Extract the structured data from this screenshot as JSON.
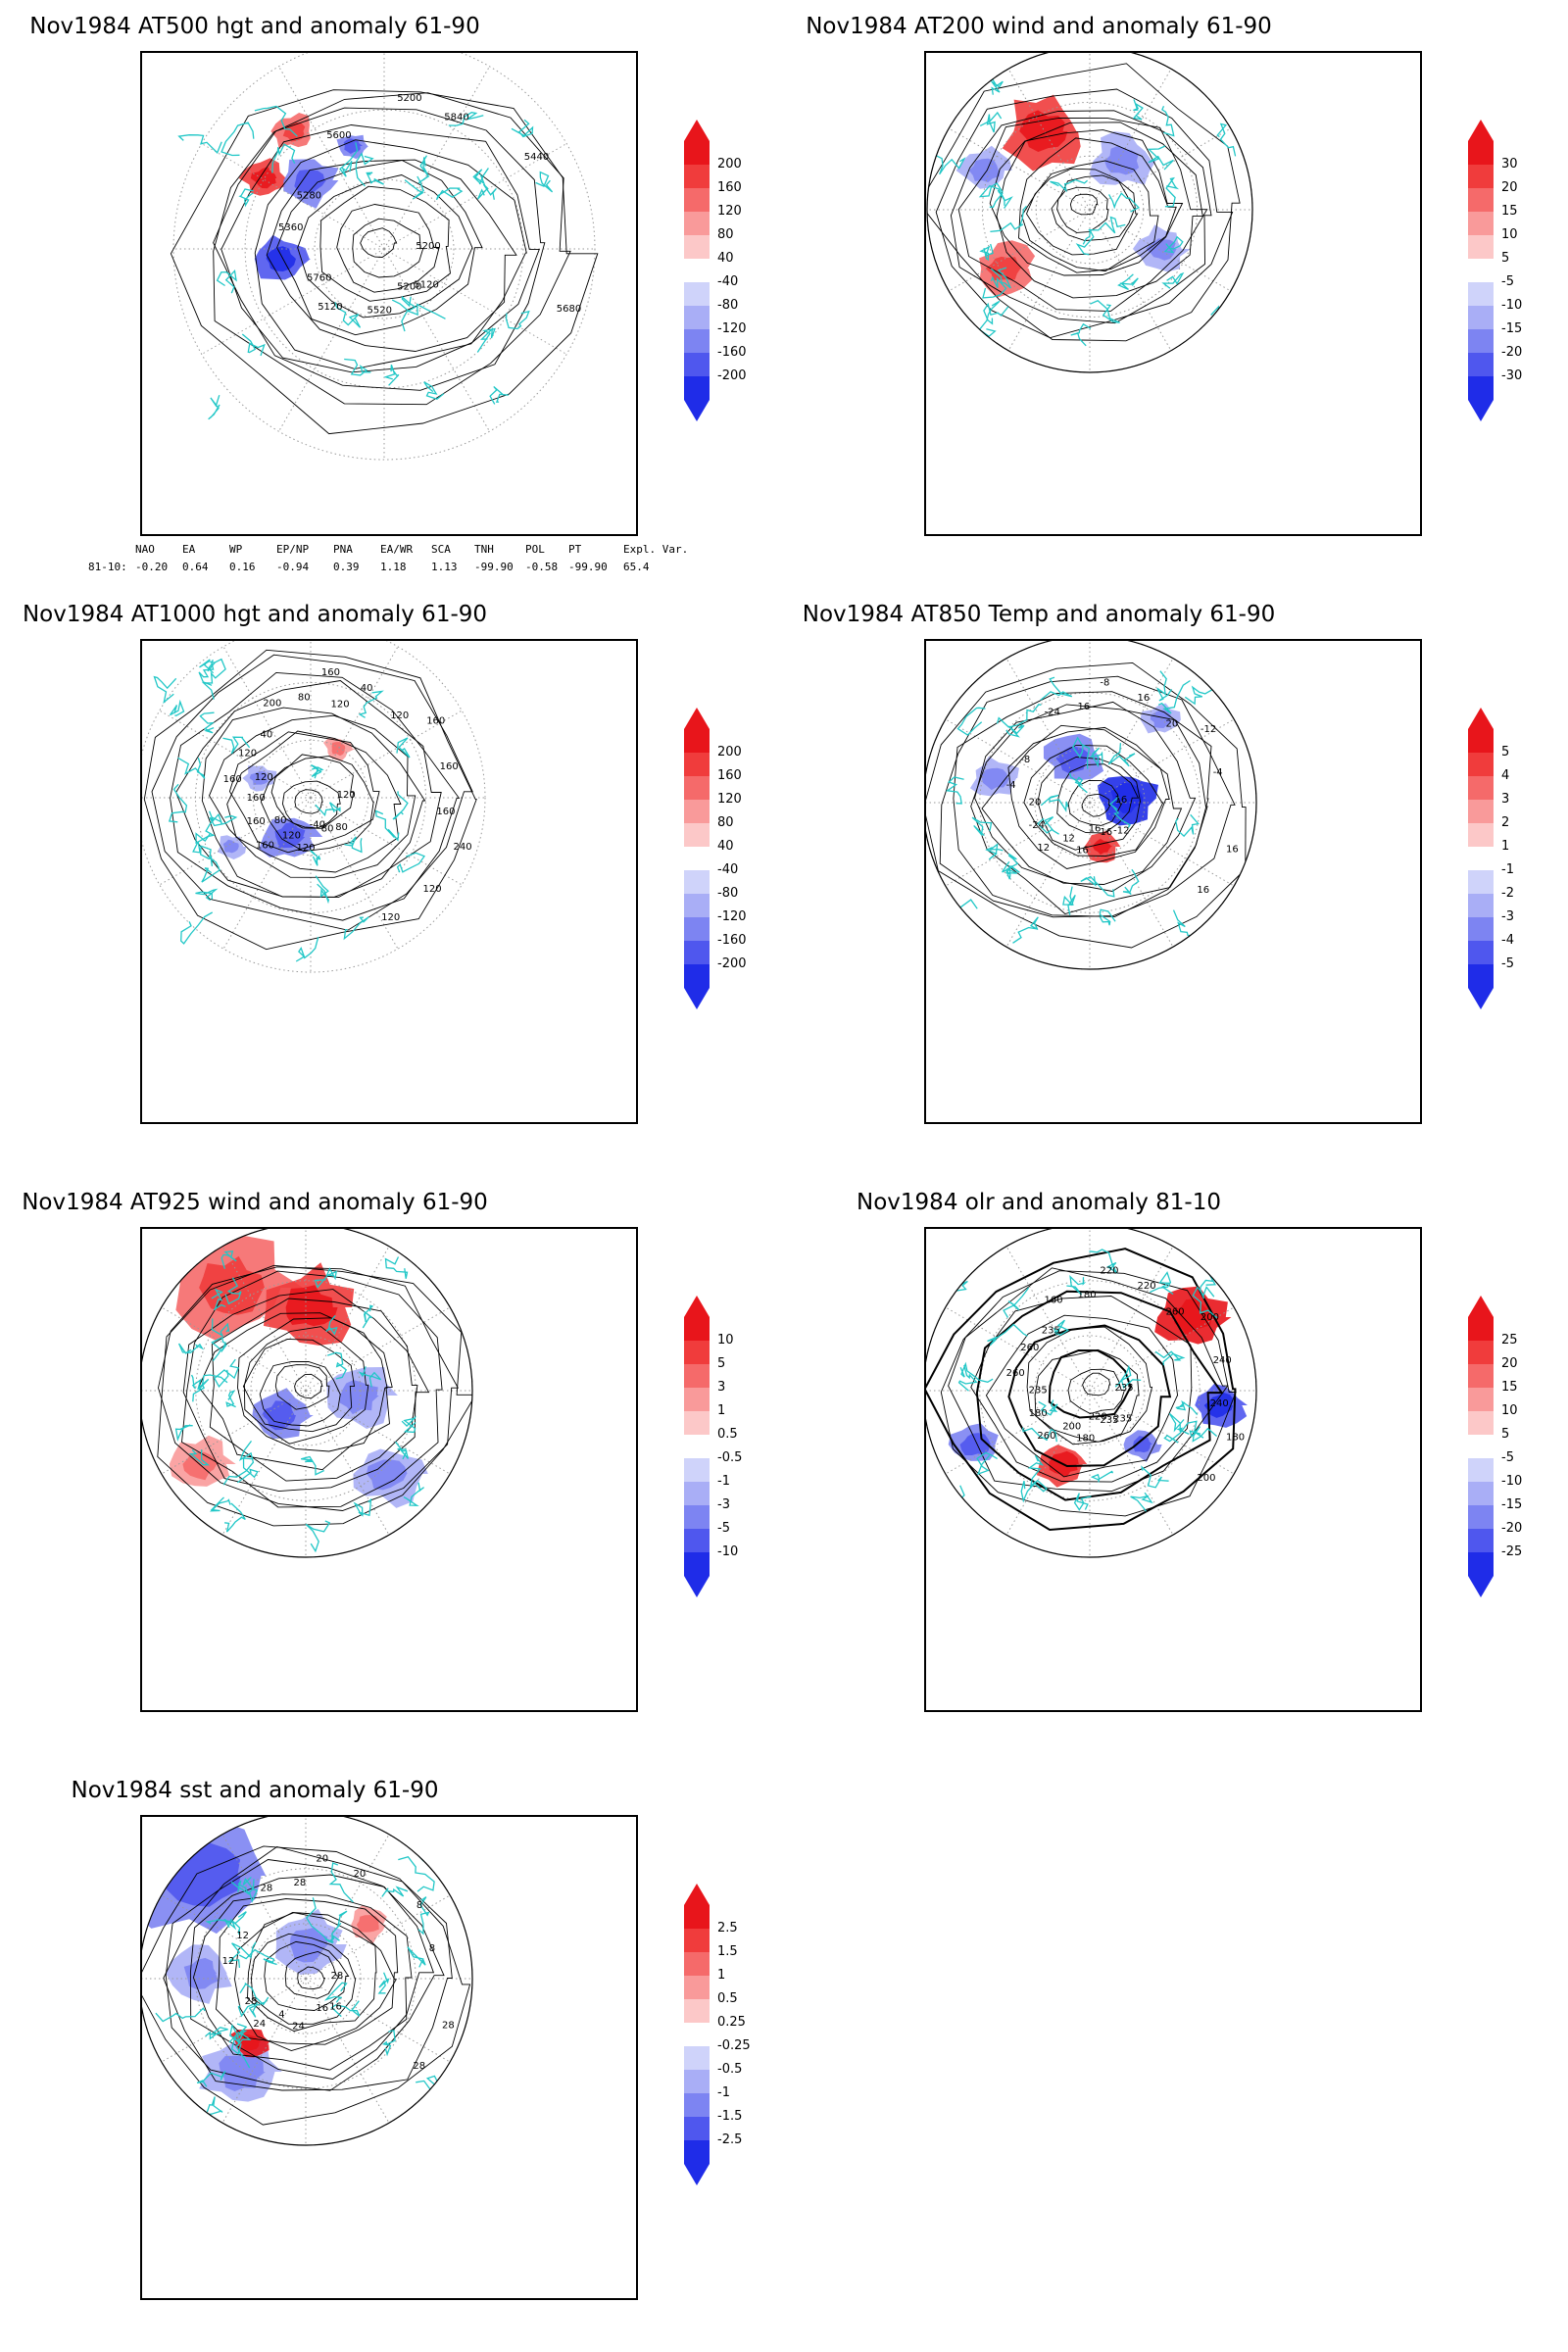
{
  "panels": [
    {
      "id": "at500",
      "title": "Nov1984 AT500 hgt and anomaly 61-90",
      "colorbar": [
        "200",
        "160",
        "120",
        "80",
        "40",
        "-40",
        "-80",
        "-120",
        "-160",
        "-200"
      ],
      "contour_labels": [
        "5200",
        "5120",
        "5200",
        "5120",
        "5360",
        "5440",
        "5520",
        "5600",
        "5680",
        "5760",
        "5840",
        "5200",
        "5280"
      ],
      "indices": {
        "headers": [
          "NAO",
          "EA",
          "WP",
          "EP/NP",
          "PNA",
          "EA/WR",
          "SCA",
          "TNH",
          "POL",
          "PT",
          "Expl. Var."
        ],
        "row_label": "81-10:",
        "values": [
          "-0.20",
          "0.64",
          "0.16",
          "-0.94",
          "0.39",
          "1.18",
          "1.13",
          "-99.90",
          "-0.58",
          "-99.90",
          "65.4"
        ]
      }
    },
    {
      "id": "at200",
      "title": "Nov1984 AT200 wind and anomaly 61-90",
      "colorbar": [
        "30",
        "20",
        "15",
        "10",
        "5",
        "-5",
        "-10",
        "-15",
        "-20",
        "-30"
      ],
      "contour_labels": []
    },
    {
      "id": "at1000",
      "title": "Nov1984 AT1000 hgt and anomaly 61-90",
      "colorbar": [
        "200",
        "160",
        "120",
        "80",
        "40",
        "-40",
        "-80",
        "-120",
        "-160",
        "-200"
      ],
      "contour_labels": [
        "120",
        "160",
        "160",
        "80",
        "160",
        "160",
        "120",
        "200",
        "240",
        "160",
        "40",
        "80",
        "120",
        "160",
        "120",
        "80",
        "120",
        "160",
        "120",
        "-40",
        "40",
        "160",
        "80",
        "120",
        "120",
        "120"
      ]
    },
    {
      "id": "at850",
      "title": "Nov1984 AT850 Temp and anomaly 61-90",
      "colorbar": [
        "5",
        "4",
        "3",
        "2",
        "1",
        "-1",
        "-2",
        "-3",
        "-4",
        "-5"
      ],
      "contour_labels": [
        "16",
        "12",
        "-8",
        "-12",
        "-4",
        "-12",
        "16",
        "-24",
        "16",
        "-24",
        "16",
        "16",
        "-8",
        "-4",
        "12",
        "16",
        "16",
        "20",
        "20",
        "16"
      ]
    },
    {
      "id": "at925",
      "title": "Nov1984 AT925 wind and anomaly 61-90",
      "colorbar": [
        "10",
        "5",
        "3",
        "1",
        "0.5",
        "-0.5",
        "-1",
        "-3",
        "-5",
        "-10"
      ],
      "contour_labels": []
    },
    {
      "id": "olr",
      "title": "Nov1984 olr and anomaly 81-10",
      "colorbar": [
        "25",
        "20",
        "15",
        "10",
        "5",
        "-5",
        "-10",
        "-15",
        "-20",
        "-25"
      ],
      "contour_labels": [
        "235",
        "260",
        "220",
        "235",
        "260",
        "200",
        "180",
        "160",
        "180",
        "180",
        "220",
        "235",
        "260",
        "240",
        "200",
        "180",
        "200",
        "235",
        "260",
        "220",
        "235",
        "240"
      ]
    },
    {
      "id": "sst",
      "title": "Nov1984 sst and anomaly 61-90",
      "colorbar": [
        "2.5",
        "1.5",
        "1",
        "0.5",
        "0.25",
        "-0.25",
        "-0.5",
        "-1",
        "-1.5",
        "-2.5"
      ],
      "contour_labels": [
        "28",
        "24",
        "20",
        "16",
        "12",
        "8",
        "24",
        "28",
        "28",
        "28",
        "20",
        "16",
        "12",
        "8",
        "4",
        "28",
        "28"
      ]
    }
  ],
  "colors": {
    "positive": [
      "#e8151b",
      "#f03c3c",
      "#f56a6a",
      "#f99a9a",
      "#fcc8c8"
    ],
    "neutral": "#ffffff",
    "negative": [
      "#cfd3fa",
      "#a9aef6",
      "#7d84f2",
      "#4f57ee",
      "#1f2ce8"
    ],
    "coastline": "#22c7c7",
    "contour": "#000000"
  }
}
